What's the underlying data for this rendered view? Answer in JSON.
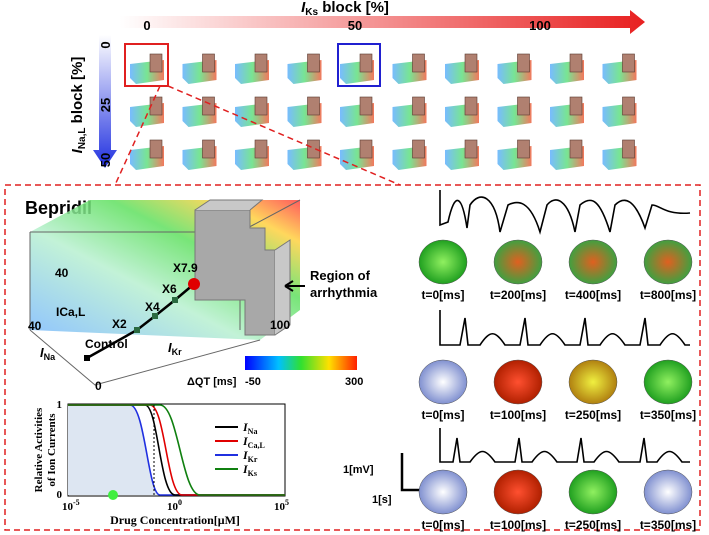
{
  "top": {
    "x_axis": {
      "symbol": "I",
      "subscript": "Ks",
      "rest": " block  [%]",
      "ticks": [
        "0",
        "50",
        "100"
      ]
    },
    "y_axis": {
      "symbol": "I",
      "subscript": "Na,L",
      "rest": " block [%]",
      "ticks": [
        "0",
        "25",
        "50"
      ]
    }
  },
  "detail": {
    "title": "Bepridil",
    "box_labels": {
      "ica_tick": "40",
      "ica": "ICa,L",
      "ina_tick": "40",
      "ina_symbol": "I",
      "ina_subscript": "Na",
      "origin": "0",
      "ikr_symbol": "I",
      "ikr_subscript": "Kr",
      "ikr_tick": "100"
    },
    "path_points": [
      "Control",
      "X2",
      "X4",
      "X6",
      "X7.9"
    ],
    "region": [
      "Region of",
      "arrhythmia"
    ],
    "colorbar": {
      "title": "ΔQT [ms]",
      "min": "-50",
      "max": "300"
    },
    "inset": {
      "y_title": [
        "Relative Activities",
        "of Ion Currents"
      ],
      "x_title": "Drug Concentration[μM]",
      "yticks": [
        "1",
        "0"
      ],
      "xticks": [
        {
          "base": "10",
          "exp": "-5"
        },
        {
          "base": "10",
          "exp": "0"
        },
        {
          "base": "10",
          "exp": "5"
        }
      ],
      "legend": [
        {
          "symbol": "I",
          "subscript": "Na",
          "color": "#000000"
        },
        {
          "symbol": "I",
          "subscript": "Ca,L",
          "color": "#e00000"
        },
        {
          "symbol": "I",
          "subscript": "Kr",
          "color": "#2030e0"
        },
        {
          "symbol": "I",
          "subscript": "Ks",
          "color": "#108010"
        }
      ]
    },
    "scale_bar": {
      "voltage": "1[mV]",
      "time": "1[s]"
    },
    "rows": [
      [
        "t=0[ms]",
        "t=200[ms]",
        "t=400[ms]",
        "t=800[ms]"
      ],
      [
        "t=0[ms]",
        "t=100[ms]",
        "t=250[ms]",
        "t=350[ms]"
      ],
      [
        "t=0[ms]",
        "t=100[ms]",
        "t=250[ms]",
        "t=350[ms]"
      ]
    ]
  }
}
